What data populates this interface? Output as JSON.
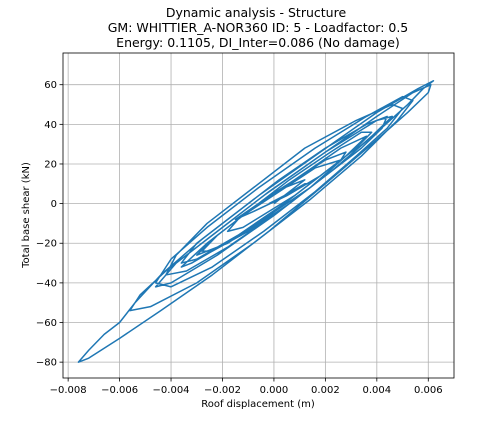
{
  "chart_data": {
    "type": "line",
    "title": [
      "Dynamic analysis - Structure",
      "GM: WHITTIER_A-NOR360 ID: 5 -  Loadfactor: 0.5",
      "Energy: 0.1105, DI_Inter=0.086 (No damage)"
    ],
    "xlabel": "Roof displacement (m)",
    "ylabel": "Total base shear (kN)",
    "xlim": [
      -0.0082,
      0.007
    ],
    "ylim": [
      -88,
      76
    ],
    "xticks": [
      -0.008,
      -0.006,
      -0.004,
      -0.002,
      0.0,
      0.002,
      0.004,
      0.006
    ],
    "xtick_labels": [
      "−0.008",
      "−0.006",
      "−0.004",
      "−0.002",
      "0.000",
      "0.002",
      "0.004",
      "0.006"
    ],
    "yticks": [
      -80,
      -60,
      -40,
      -20,
      0,
      20,
      40,
      60
    ],
    "ytick_labels": [
      "−80",
      "−60",
      "−40",
      "−20",
      "0",
      "20",
      "40",
      "60"
    ],
    "grid": true,
    "series": [
      {
        "color": "#1f77b4",
        "x": [
          0.0,
          0.0006,
          0.0012,
          0.0004,
          -0.0006,
          -0.0015,
          -0.0008,
          0.0005,
          0.0018,
          0.0026,
          0.0016,
          0.0002,
          -0.0012,
          -0.0024,
          -0.003,
          -0.0018,
          -0.0002,
          0.0014,
          0.0028,
          0.0036,
          0.0026,
          0.0008,
          -0.001,
          -0.0026,
          -0.0036,
          -0.0032,
          -0.0016,
          0.0004,
          0.0024,
          0.0038,
          0.0046,
          0.004,
          0.002,
          -0.0002,
          -0.0022,
          -0.0038,
          -0.0046,
          -0.004,
          -0.0022,
          0.0,
          0.0022,
          0.004,
          0.0052,
          0.0058,
          0.0062,
          0.0056,
          0.004,
          0.0018,
          -0.0006,
          -0.0028,
          -0.0044,
          -0.0054,
          -0.006,
          -0.0066,
          -0.0072,
          -0.0076,
          -0.0072,
          -0.006,
          -0.0044,
          -0.0024,
          -0.0002,
          0.002,
          0.0038,
          0.0052,
          0.006,
          0.0061,
          0.0054,
          0.004,
          0.002,
          -0.0004,
          -0.0026,
          -0.0042,
          -0.0052,
          -0.0056,
          -0.0048,
          -0.003,
          -0.0008,
          0.0014,
          0.0034,
          0.0048,
          0.0054,
          0.005,
          0.0036,
          0.0016,
          -0.0006,
          -0.0026,
          -0.004,
          -0.0046,
          -0.004,
          -0.0024,
          -0.0004,
          0.0016,
          0.0032,
          0.0044,
          0.005,
          0.0046,
          0.0032,
          0.0012,
          -0.0008,
          -0.0026,
          -0.0038,
          -0.0042,
          -0.0034,
          -0.0018,
          0.0002,
          0.002,
          0.0034,
          0.0042,
          0.0044,
          0.0036,
          0.002,
          0.0002,
          -0.0016,
          -0.003,
          -0.0036,
          -0.003,
          -0.0014,
          0.0004,
          0.002,
          0.0032,
          0.0038,
          0.0034,
          0.0022,
          0.0006,
          -0.001,
          -0.0022,
          -0.0028,
          -0.0024,
          -0.001,
          0.0006,
          0.0018,
          0.0026,
          0.0028,
          0.002,
          0.0008,
          -0.0004,
          -0.0014,
          -0.0018,
          -0.0012,
          -0.0002,
          0.0008,
          0.0014,
          0.0012,
          0.0004,
          -0.0002
        ],
        "y": [
          0,
          6,
          12,
          8,
          0,
          -8,
          -4,
          4,
          14,
          22,
          18,
          6,
          -6,
          -18,
          -26,
          -20,
          -6,
          8,
          24,
          34,
          28,
          12,
          -4,
          -20,
          -32,
          -30,
          -18,
          -2,
          18,
          34,
          44,
          42,
          26,
          6,
          -14,
          -30,
          -42,
          -40,
          -26,
          -6,
          16,
          36,
          50,
          58,
          62,
          58,
          46,
          26,
          4,
          -18,
          -36,
          -50,
          -60,
          -66,
          -74,
          -80,
          -78,
          -68,
          -54,
          -36,
          -14,
          10,
          30,
          46,
          56,
          60,
          56,
          44,
          26,
          4,
          -18,
          -34,
          -46,
          -54,
          -52,
          -40,
          -20,
          2,
          24,
          42,
          52,
          54,
          44,
          28,
          8,
          -12,
          -28,
          -40,
          -42,
          -32,
          -14,
          6,
          24,
          38,
          48,
          50,
          42,
          28,
          8,
          -10,
          -26,
          -36,
          -34,
          -22,
          -4,
          14,
          28,
          38,
          44,
          40,
          28,
          12,
          -6,
          -20,
          -30,
          -28,
          -16,
          0,
          16,
          28,
          36,
          36,
          26,
          12,
          -4,
          -16,
          -24,
          -24,
          -14,
          0,
          12,
          22,
          26,
          22,
          12,
          2,
          -8,
          -14,
          -12,
          -4,
          4,
          10,
          10,
          4,
          0
        ]
      }
    ]
  }
}
